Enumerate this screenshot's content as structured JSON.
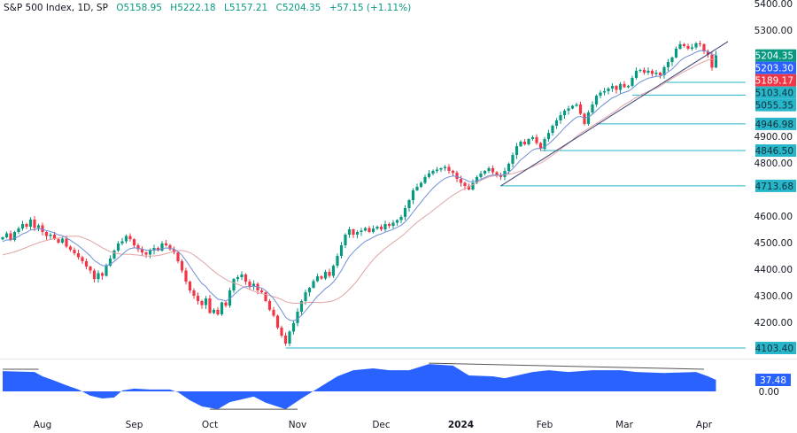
{
  "header": {
    "symbol": "S&P 500 Index, 1D, SP",
    "open": "O5158.95",
    "high": "H5222.18",
    "low": "L5157.21",
    "close": "C5204.35",
    "change": "+57.15 (+1.11%)"
  },
  "colors": {
    "up": "#089981",
    "down": "#f23645",
    "ema": "#6f8fd6",
    "sma": "#e2a3a3",
    "level": "#26b5c9",
    "oscillator": "#2962ff",
    "trendline": "#3a4477"
  },
  "chart_data": {
    "type": "candlestick",
    "title": "S&P 500 Index, 1D, SP",
    "ylim": [
      4000,
      5420
    ],
    "y_ticks": [
      "5400.00",
      "5300.00",
      "4900.00",
      "4800.00",
      "4600.00",
      "4500.00",
      "4400.00",
      "4300.00",
      "4200.00"
    ],
    "y_tick_values": [
      5400,
      5300,
      4900,
      4800,
      4600,
      4500,
      4400,
      4300,
      4200
    ],
    "x_labels": [
      {
        "label": "Aug",
        "bar": 10
      },
      {
        "label": "Sep",
        "bar": 33
      },
      {
        "label": "Oct",
        "bar": 52
      },
      {
        "label": "Nov",
        "bar": 74
      },
      {
        "label": "Dec",
        "bar": 95
      },
      {
        "label": "2024",
        "bar": 115,
        "bold": true
      },
      {
        "label": "Feb",
        "bar": 136
      },
      {
        "label": "Mar",
        "bar": 156
      },
      {
        "label": "Apr",
        "bar": 176
      }
    ],
    "closes": [
      4520,
      4535,
      4510,
      4540,
      4553,
      4570,
      4560,
      4587,
      4555,
      4565,
      4540,
      4525,
      4530,
      4513,
      4500,
      4515,
      4485,
      4473,
      4460,
      4445,
      4430,
      4410,
      4395,
      4363,
      4385,
      4375,
      4413,
      4440,
      4470,
      4497,
      4505,
      4525,
      4513,
      4490,
      4475,
      4463,
      4455,
      4470,
      4480,
      4470,
      4497,
      4490,
      4475,
      4463,
      4430,
      4395,
      4353,
      4320,
      4300,
      4280,
      4265,
      4290,
      4235,
      4247,
      4230,
      4275,
      4263,
      4320,
      4363,
      4370,
      4380,
      4353,
      4335,
      4345,
      4320,
      4313,
      4280,
      4247,
      4225,
      4180,
      4150,
      4120,
      4165,
      4197,
      4240,
      4280,
      4313,
      4330,
      4355,
      4373,
      4365,
      4390,
      4375,
      4413,
      4450,
      4490,
      4530,
      4550,
      4530,
      4540,
      4545,
      4555,
      4540,
      4553,
      4560,
      4550,
      4570,
      4563,
      4575,
      4585,
      4597,
      4630,
      4660,
      4697,
      4710,
      4725,
      4747,
      4760,
      4770,
      4775,
      4780,
      4785,
      4770,
      4763,
      4740,
      4725,
      4713,
      4700,
      4725,
      4747,
      4760,
      4770,
      4780,
      4765,
      4755,
      4747,
      4770,
      4797,
      4830,
      4863,
      4880,
      4870,
      4890,
      4897,
      4875,
      4853,
      4890,
      4913,
      4940,
      4960,
      4980,
      4997,
      5005,
      5015,
      5020,
      4985,
      4947,
      4990,
      5020,
      5053,
      5065,
      5070,
      5080,
      5090,
      5075,
      5097,
      5085,
      5090,
      5120,
      5147,
      5150,
      5140,
      5147,
      5135,
      5140,
      5130,
      5160,
      5180,
      5197,
      5230,
      5247,
      5240,
      5230,
      5235,
      5250,
      5247,
      5220,
      5207,
      5158.95,
      5204.35
    ],
    "last_bar": {
      "open": 5158.95,
      "high": 5222.18,
      "low": 5157.21,
      "close": 5204.35
    },
    "ema_period": 9,
    "sma_period": 20,
    "price_labels": [
      {
        "text": "5204.35",
        "value": 5204.35,
        "kind": "close"
      },
      {
        "text": "5203.30",
        "value": 5203.3,
        "kind": "ema"
      },
      {
        "text": "5189.17",
        "value": 5189.17,
        "kind": "sma"
      }
    ],
    "levels": [
      {
        "text": "5103.40",
        "value": 5103.4,
        "from_bar": 166
      },
      {
        "text": "5055.35",
        "value": 5055.35,
        "from_bar": 158
      },
      {
        "text": "4946.98",
        "value": 4946.98,
        "from_bar": 149
      },
      {
        "text": "4846.50",
        "value": 4846.5,
        "from_bar": 135
      },
      {
        "text": "4713.68",
        "value": 4713.68,
        "from_bar": 125
      },
      {
        "text": "4103.40",
        "value": 4103.4,
        "from_bar": 71
      }
    ],
    "trendline": [
      [
        125,
        4713.68
      ],
      [
        182,
        5257
      ]
    ],
    "oscillator": {
      "last_label": "37.48",
      "zero_label": "0.00",
      "ylim": [
        -65,
        95
      ],
      "points": [
        [
          0,
          66
        ],
        [
          8,
          63
        ],
        [
          10,
          49
        ],
        [
          13,
          35
        ],
        [
          16,
          20
        ],
        [
          19,
          6
        ],
        [
          22,
          -14
        ],
        [
          25,
          -23
        ],
        [
          28,
          -20
        ],
        [
          30,
          3
        ],
        [
          33,
          9
        ],
        [
          37,
          6
        ],
        [
          42,
          6
        ],
        [
          44,
          -3
        ],
        [
          47,
          -29
        ],
        [
          50,
          -49
        ],
        [
          54,
          -58
        ],
        [
          57,
          -35
        ],
        [
          63,
          -17
        ],
        [
          66,
          -37
        ],
        [
          71,
          -58
        ],
        [
          75,
          -23
        ],
        [
          79,
          9
        ],
        [
          84,
          49
        ],
        [
          88,
          69
        ],
        [
          93,
          75
        ],
        [
          97,
          69
        ],
        [
          102,
          69
        ],
        [
          107,
          89
        ],
        [
          113,
          84
        ],
        [
          117,
          52
        ],
        [
          123,
          49
        ],
        [
          126,
          43
        ],
        [
          133,
          63
        ],
        [
          137,
          69
        ],
        [
          142,
          63
        ],
        [
          148,
          69
        ],
        [
          155,
          69
        ],
        [
          159,
          63
        ],
        [
          166,
          60
        ],
        [
          174,
          63
        ],
        [
          177,
          49
        ],
        [
          179,
          37.48
        ]
      ],
      "divergence_lines": [
        [
          [
            0,
            72
          ],
          [
            9,
            72
          ]
        ],
        [
          [
            52,
            -58
          ],
          [
            74,
            -58
          ]
        ],
        [
          [
            107,
            92
          ],
          [
            176,
            72
          ]
        ]
      ]
    }
  }
}
